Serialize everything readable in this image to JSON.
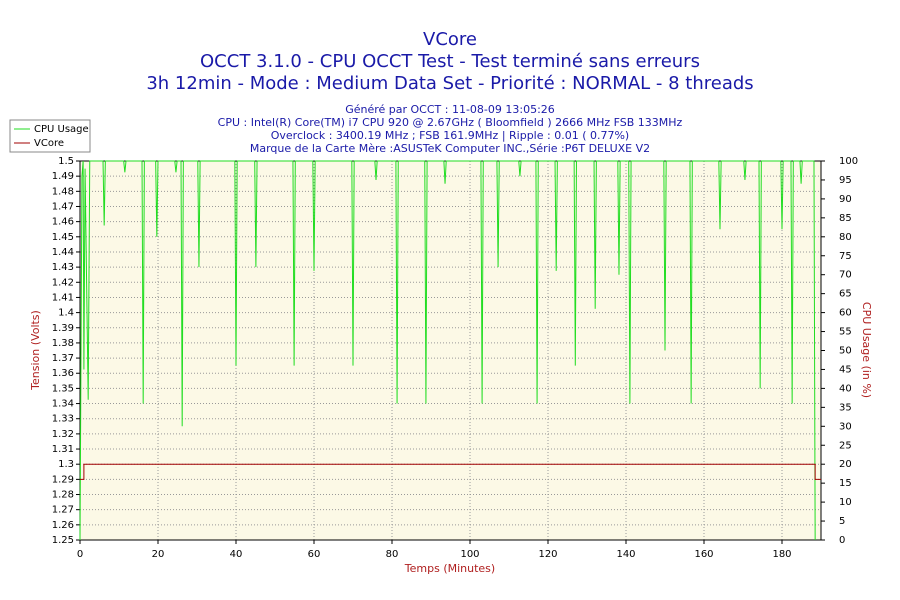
{
  "chart_data": {
    "type": "line",
    "title": "VCore",
    "subtitle": [
      "OCCT 3.1.0 - CPU OCCT Test - Test terminé sans erreurs",
      "3h 12min - Mode : Medium Data Set - Priorité : NORMAL - 8 threads"
    ],
    "info": [
      "Généré par OCCT : 11-08-09 13:05:26",
      "CPU : Intel(R) Core(TM) i7 CPU 920 @ 2.67GHz ( Bloomfield ) 2666 MHz FSB 133MHz",
      "Overclock : 3400.19 MHz ; FSB 161.9MHz | Ripple : 0.01 ( 0.77%)",
      "Marque de la Carte Mère :ASUSTeK Computer INC.,Série :P6T DELUXE V2"
    ],
    "xlabel": "Temps (Minutes)",
    "ylabel": "Tension (Volts)",
    "y2label": "CPU Usage (in %)",
    "xlim": [
      0,
      190
    ],
    "xticks": [
      0,
      20,
      40,
      60,
      80,
      100,
      120,
      140,
      160,
      180
    ],
    "ylim": [
      1.25,
      1.5
    ],
    "yticks": [
      1.25,
      1.26,
      1.27,
      1.28,
      1.29,
      1.3,
      1.31,
      1.32,
      1.33,
      1.34,
      1.35,
      1.36,
      1.37,
      1.38,
      1.39,
      1.4,
      1.41,
      1.42,
      1.43,
      1.44,
      1.45,
      1.46,
      1.47,
      1.48,
      1.49,
      1.5
    ],
    "y2lim": [
      0,
      100
    ],
    "y2ticks": [
      0,
      5,
      10,
      15,
      20,
      25,
      30,
      35,
      40,
      45,
      50,
      55,
      60,
      65,
      70,
      75,
      80,
      85,
      90,
      95,
      100
    ],
    "grid": true,
    "legend": "upper left",
    "series": [
      {
        "name": "CPU Usage",
        "color": "#22dd22",
        "axis": "y2",
        "x": [
          0,
          0.5,
          0.8,
          1.0,
          1.3,
          2.1,
          2.5,
          5.9,
          6.2,
          6.5,
          11.2,
          11.5,
          11.8,
          15.9,
          16.2,
          16.5,
          19.4,
          19.7,
          20.0,
          24.3,
          24.6,
          24.9,
          25.9,
          26.2,
          26.5,
          30.2,
          30.5,
          30.8,
          39.7,
          40.0,
          40.3,
          44.8,
          45.1,
          45.4,
          54.6,
          54.9,
          55.2,
          59.7,
          60.0,
          60.3,
          69.7,
          70.0,
          70.3,
          75.6,
          75.9,
          76.2,
          81.0,
          81.3,
          81.6,
          88.4,
          88.7,
          89.0,
          93.3,
          93.6,
          93.9,
          102.8,
          103.1,
          103.4,
          106.9,
          107.2,
          107.5,
          112.5,
          112.8,
          113.1,
          116.9,
          117.2,
          117.5,
          121.8,
          122.1,
          122.4,
          126.7,
          127.0,
          127.3,
          131.8,
          132.1,
          132.4,
          137.9,
          138.2,
          138.5,
          140.7,
          141.0,
          141.3,
          149.7,
          150.0,
          150.3,
          156.4,
          156.7,
          157.0,
          163.8,
          164.1,
          164.4,
          170.2,
          170.5,
          170.8,
          174.1,
          174.4,
          174.7,
          179.7,
          180.0,
          180.3,
          182.3,
          182.6,
          182.9,
          184.6,
          184.9,
          185.2,
          188.2,
          188.5
        ],
        "values": [
          0,
          96,
          100,
          45,
          98,
          37,
          100,
          100,
          83,
          100,
          100,
          97,
          100,
          100,
          36,
          100,
          100,
          80,
          100,
          100,
          97,
          100,
          100,
          30,
          100,
          100,
          72,
          100,
          100,
          46,
          100,
          100,
          72,
          100,
          100,
          46,
          100,
          100,
          71,
          100,
          100,
          46,
          100,
          100,
          95,
          100,
          100,
          36,
          100,
          100,
          36,
          100,
          100,
          94,
          100,
          100,
          36,
          100,
          100,
          72,
          100,
          100,
          96,
          100,
          100,
          36,
          100,
          100,
          71,
          100,
          100,
          46,
          100,
          100,
          61,
          100,
          100,
          70,
          100,
          100,
          36,
          100,
          100,
          50,
          100,
          100,
          36,
          100,
          100,
          82,
          100,
          100,
          95,
          100,
          100,
          40,
          100,
          100,
          82,
          100,
          100,
          36,
          100,
          100,
          94,
          100,
          100,
          0
        ]
      },
      {
        "name": "VCore",
        "color": "#a00000",
        "axis": "y",
        "x": [
          0,
          1,
          1,
          188.5,
          188.5,
          190
        ],
        "values": [
          1.29,
          1.29,
          1.3,
          1.3,
          1.29,
          1.29
        ]
      }
    ]
  }
}
